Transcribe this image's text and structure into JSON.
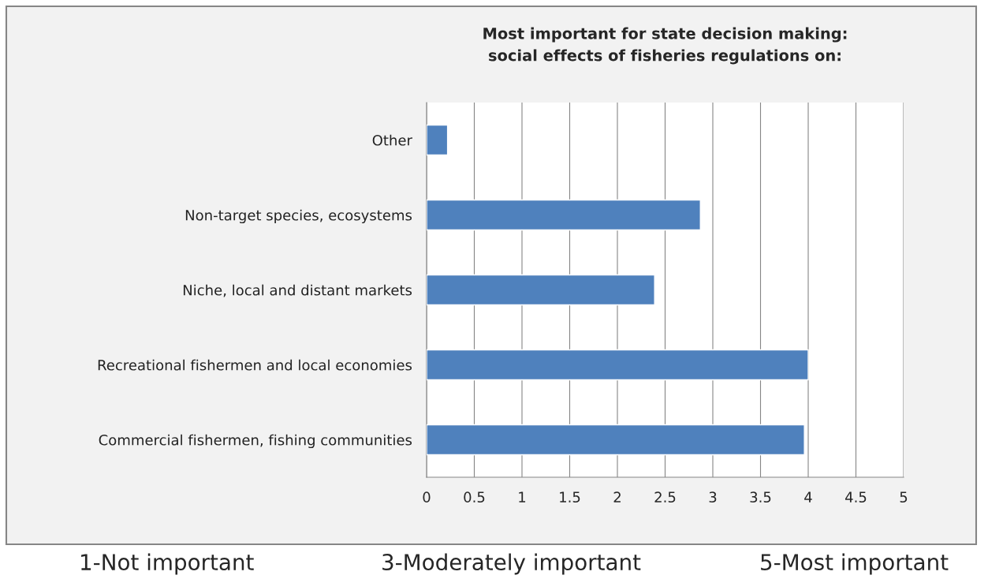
{
  "chart_data": {
    "type": "bar",
    "orientation": "horizontal",
    "title": "Most important for state decision making:\nsocial effects of fisheries regulations on:",
    "categories": [
      "Other",
      "Non-target species, ecosystems",
      "Niche, local and distant markets",
      "Recreational fishermen and local economies",
      "Commercial fishermen, fishing communities"
    ],
    "values": [
      0.22,
      2.87,
      2.39,
      4.0,
      3.96
    ],
    "color": "#4f81bd",
    "xlim": [
      0,
      5
    ],
    "xticks": [
      0,
      0.5,
      1,
      1.5,
      2,
      2.5,
      3,
      3.5,
      4,
      4.5,
      5
    ],
    "grid": "x",
    "legend": false,
    "annotations": [
      "1-Not important",
      "3-Moderately important",
      "5-Most important"
    ]
  }
}
